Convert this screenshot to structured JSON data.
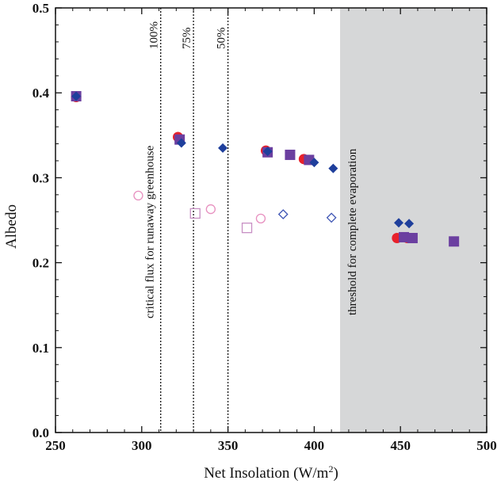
{
  "chart_data": {
    "type": "scatter",
    "xlabel": "Net Insolation (W/m",
    "xlabel_sup": "2",
    "xlabel_end": ")",
    "ylabel": "Albedo",
    "xlim": [
      250,
      500
    ],
    "ylim": [
      0.0,
      0.5
    ],
    "x_ticks": [
      250,
      300,
      350,
      400,
      450,
      500
    ],
    "y_ticks": [
      0.0,
      0.1,
      0.2,
      0.3,
      0.4,
      0.5
    ],
    "x_tick_labels": [
      "250",
      "300",
      "350",
      "400",
      "450",
      "500"
    ],
    "y_tick_labels": [
      "0.0",
      "0.1",
      "0.2",
      "0.3",
      "0.4",
      "0.5"
    ],
    "grid": false,
    "shaded_region": {
      "x_start": 415,
      "x_end": 500,
      "color": "#d6d7d8"
    },
    "vertical_lines": [
      {
        "x": 311,
        "label": "100%"
      },
      {
        "x": 330,
        "label": "75%"
      },
      {
        "x": 350,
        "label": "50%"
      }
    ],
    "annotations": {
      "runaway": "critical flux for runaway greenhouse",
      "evaporation": "threshold for complete evaporation"
    },
    "colors": {
      "circle": "#e8212b",
      "square": "#6b3fa0",
      "diamond": "#1f3f9c",
      "circle_open": "#e78fbf",
      "square_open": "#c890c4",
      "diamond_open": "#3e55b4"
    },
    "series": [
      {
        "marker": "circle",
        "filled": true,
        "points": [
          [
            262,
            0.395
          ],
          [
            321,
            0.348
          ],
          [
            372,
            0.332
          ],
          [
            394,
            0.322
          ],
          [
            448,
            0.229
          ],
          [
            454,
            0.229
          ]
        ]
      },
      {
        "marker": "square",
        "filled": true,
        "points": [
          [
            262,
            0.396
          ],
          [
            322,
            0.345
          ],
          [
            373,
            0.33
          ],
          [
            386,
            0.327
          ],
          [
            397,
            0.321
          ],
          [
            452,
            0.23
          ],
          [
            457,
            0.229
          ],
          [
            481,
            0.225
          ]
        ]
      },
      {
        "marker": "diamond",
        "filled": true,
        "points": [
          [
            262,
            0.396
          ],
          [
            323,
            0.341
          ],
          [
            347,
            0.335
          ],
          [
            373,
            0.331
          ],
          [
            400,
            0.318
          ],
          [
            411,
            0.311
          ],
          [
            449,
            0.247
          ],
          [
            455,
            0.246
          ]
        ]
      },
      {
        "marker": "circle",
        "filled": false,
        "points": [
          [
            298,
            0.279
          ],
          [
            340,
            0.263
          ],
          [
            369,
            0.252
          ]
        ]
      },
      {
        "marker": "square",
        "filled": false,
        "points": [
          [
            331,
            0.258
          ],
          [
            361,
            0.241
          ]
        ]
      },
      {
        "marker": "diamond",
        "filled": false,
        "points": [
          [
            382,
            0.257
          ],
          [
            410,
            0.253
          ]
        ]
      }
    ]
  }
}
